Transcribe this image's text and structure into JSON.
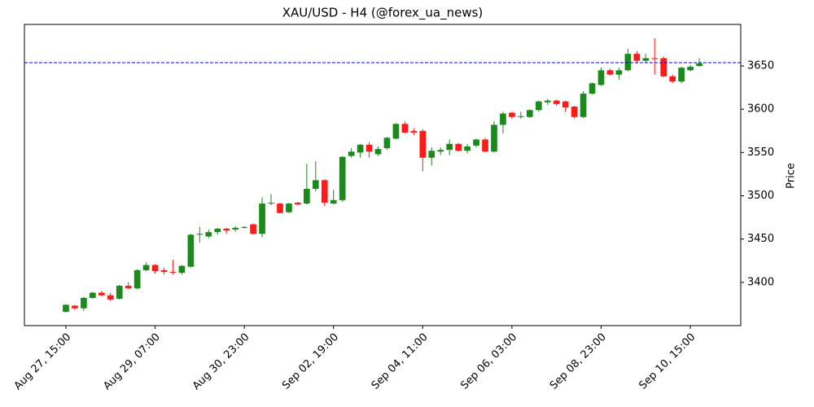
{
  "chart_data": {
    "type": "candlestick",
    "title": "XAU/USD - H4 (@forex_ua_news)",
    "ylabel": "Price",
    "categories": [
      "Aug 27, 15:00",
      null,
      null,
      null,
      null,
      null,
      null,
      null,
      null,
      null,
      "Aug 29, 07:00",
      null,
      null,
      null,
      null,
      null,
      null,
      null,
      null,
      null,
      "Aug 30, 23:00",
      null,
      null,
      null,
      null,
      null,
      null,
      null,
      null,
      null,
      "Sep 02, 19:00",
      null,
      null,
      null,
      null,
      null,
      null,
      null,
      null,
      null,
      "Sep 04, 11:00",
      null,
      null,
      null,
      null,
      null,
      null,
      null,
      null,
      null,
      "Sep 06, 03:00",
      null,
      null,
      null,
      null,
      null,
      null,
      null,
      null,
      null,
      "Sep 08, 23:00",
      null,
      null,
      null,
      null,
      null,
      null,
      null,
      null,
      null,
      "Sep 10, 15:00",
      null
    ],
    "open": [
      3366,
      3373,
      3370,
      3382,
      3388,
      3385,
      3381,
      3396,
      3393,
      3414,
      3420,
      3414,
      3412,
      3411,
      3418,
      3455,
      3453,
      3458,
      3462,
      3461,
      3463,
      3467,
      3456,
      3491,
      3491,
      3481,
      3492,
      3491,
      3508,
      3518,
      3491,
      3495,
      3546,
      3550,
      3559,
      3548,
      3555,
      3566,
      3583,
      3575,
      3575,
      3544,
      3551,
      3553,
      3560,
      3552,
      3558,
      3565,
      3551,
      3582,
      3596,
      3591,
      3591,
      3599,
      3608,
      3610,
      3609,
      3603,
      3591,
      3618,
      3628,
      3645,
      3640,
      3645,
      3664,
      3656,
      3659,
      3659,
      3638,
      3632,
      3645,
      3650
    ],
    "high": [
      3375,
      3374,
      3383,
      3389,
      3390,
      3388,
      3397,
      3400,
      3415,
      3423,
      3421,
      3417,
      3426,
      3420,
      3456,
      3464,
      3461,
      3463,
      3463,
      3465,
      3465,
      3468,
      3498,
      3502,
      3492,
      3492,
      3493,
      3537,
      3540,
      3519,
      3507,
      3546,
      3555,
      3560,
      3562,
      3557,
      3568,
      3584,
      3586,
      3578,
      3577,
      3556,
      3556,
      3565,
      3561,
      3560,
      3566,
      3567,
      3586,
      3597,
      3597,
      3597,
      3600,
      3610,
      3612,
      3611,
      3610,
      3604,
      3621,
      3631,
      3648,
      3647,
      3648,
      3670,
      3667,
      3664,
      3682,
      3661,
      3640,
      3649,
      3651,
      3659
    ],
    "low": [
      3365,
      3368,
      3367,
      3381,
      3384,
      3378,
      3380,
      3392,
      3392,
      3413,
      3410,
      3409,
      3409,
      3409,
      3417,
      3446,
      3451,
      3455,
      3456,
      3458,
      3462,
      3455,
      3452,
      3489,
      3480,
      3480,
      3489,
      3490,
      3505,
      3488,
      3490,
      3493,
      3544,
      3544,
      3544,
      3546,
      3553,
      3565,
      3572,
      3570,
      3528,
      3535,
      3547,
      3547,
      3551,
      3549,
      3556,
      3550,
      3550,
      3572,
      3589,
      3589,
      3590,
      3597,
      3605,
      3604,
      3597,
      3589,
      3590,
      3617,
      3627,
      3639,
      3634,
      3644,
      3653,
      3654,
      3640,
      3637,
      3630,
      3630,
      3644,
      3649
    ],
    "close": [
      3374,
      3370,
      3382,
      3388,
      3385,
      3380,
      3396,
      3393,
      3414,
      3420,
      3413,
      3412,
      3411,
      3419,
      3455,
      3456,
      3458,
      3462,
      3460,
      3463,
      3464,
      3456,
      3491,
      3492,
      3480,
      3491,
      3490,
      3508,
      3518,
      3492,
      3495,
      3545,
      3551,
      3559,
      3551,
      3554,
      3567,
      3583,
      3573,
      3573,
      3544,
      3552,
      3553,
      3560,
      3552,
      3557,
      3565,
      3551,
      3582,
      3595,
      3591,
      3592,
      3599,
      3609,
      3610,
      3606,
      3602,
      3591,
      3618,
      3630,
      3645,
      3640,
      3645,
      3664,
      3656,
      3659,
      3658,
      3638,
      3632,
      3648,
      3649,
      3653
    ],
    "up_color": "#1a8a1a",
    "down_color": "#ff1a1a",
    "hline": 3653.8,
    "hline_color": "#0000ff",
    "ylim": [
      3350,
      3698
    ],
    "yticks": [
      3400,
      3450,
      3500,
      3550,
      3600,
      3650
    ]
  }
}
